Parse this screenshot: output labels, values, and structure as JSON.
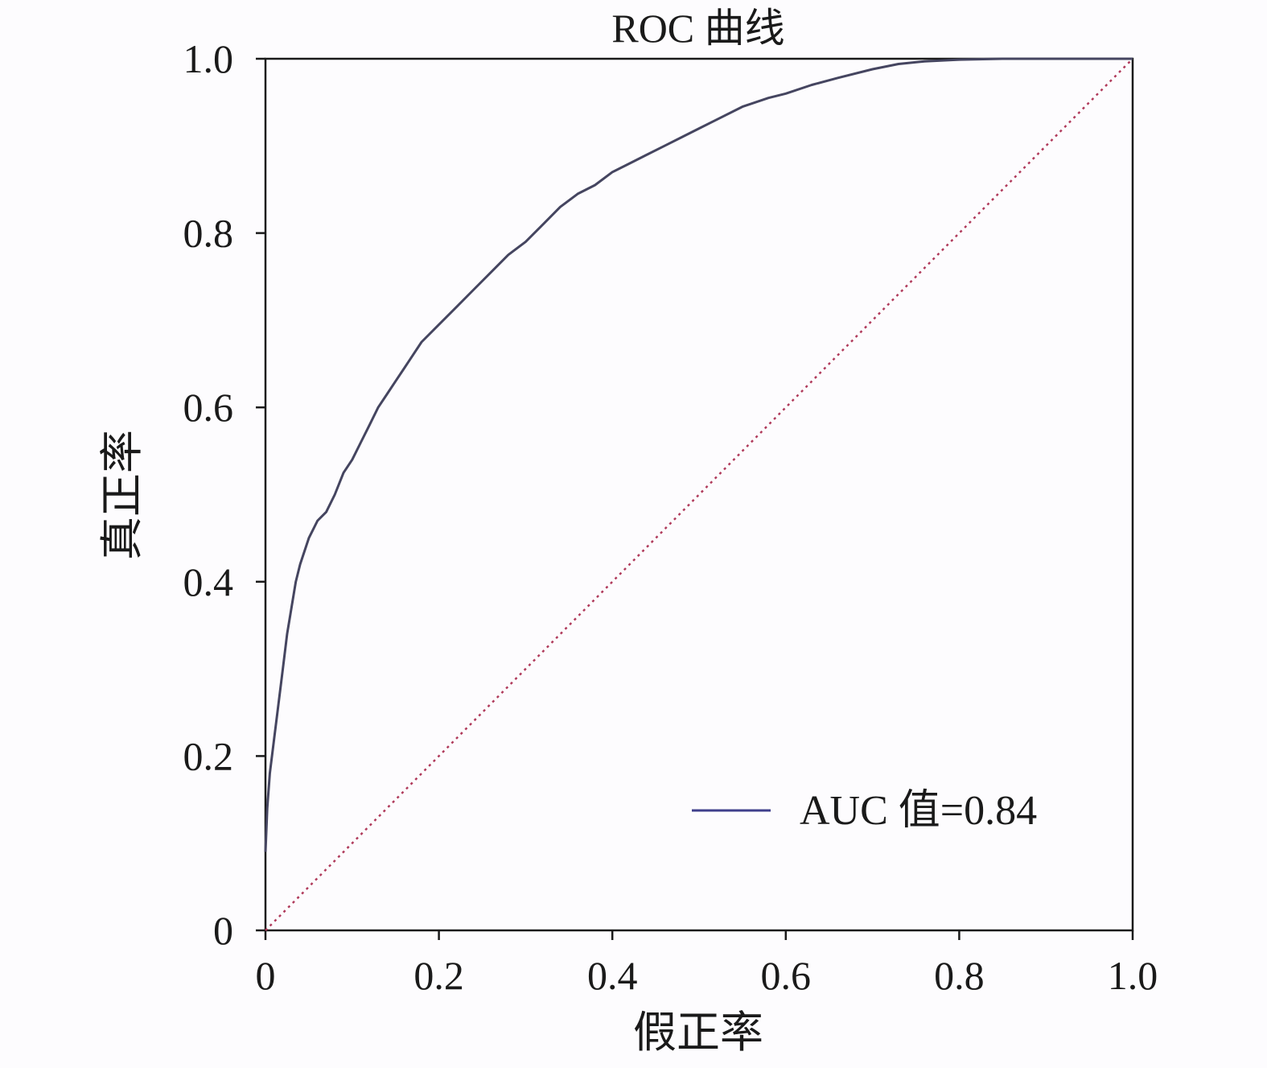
{
  "chart_data": {
    "type": "line",
    "title": "ROC 曲线",
    "xlabel": "假正率",
    "ylabel": "真正率",
    "xlim": [
      0,
      1.0
    ],
    "ylim": [
      0,
      1.0
    ],
    "xticks": [
      0,
      0.2,
      0.4,
      0.6,
      0.8,
      1.0
    ],
    "xtick_labels": [
      "0",
      "0.2",
      "0.4",
      "0.6",
      "0.8",
      "1.0"
    ],
    "yticks": [
      0,
      0.2,
      0.4,
      0.6,
      0.8,
      1.0
    ],
    "ytick_labels": [
      "0",
      "0.2",
      "0.4",
      "0.6",
      "0.8",
      "1.0"
    ],
    "grid": false,
    "legend_position": "bottom-right",
    "colors": {
      "roc_line": "#454560",
      "legend_line": "#3f3f8c",
      "diagonal": "#b03a5b",
      "axis": "#1a1a1a"
    },
    "series": [
      {
        "name": "AUC 值=0.84",
        "x": [
          0,
          0.002,
          0.005,
          0.01,
          0.015,
          0.02,
          0.025,
          0.03,
          0.035,
          0.04,
          0.045,
          0.05,
          0.055,
          0.06,
          0.065,
          0.07,
          0.08,
          0.09,
          0.1,
          0.11,
          0.12,
          0.13,
          0.14,
          0.15,
          0.16,
          0.17,
          0.18,
          0.2,
          0.22,
          0.24,
          0.26,
          0.28,
          0.3,
          0.32,
          0.34,
          0.36,
          0.38,
          0.4,
          0.42,
          0.44,
          0.46,
          0.48,
          0.5,
          0.52,
          0.55,
          0.58,
          0.6,
          0.63,
          0.66,
          0.7,
          0.73,
          0.76,
          0.8,
          0.85,
          0.9,
          0.95,
          1.0
        ],
        "y": [
          0.09,
          0.14,
          0.18,
          0.22,
          0.26,
          0.3,
          0.34,
          0.37,
          0.4,
          0.42,
          0.435,
          0.45,
          0.46,
          0.47,
          0.475,
          0.48,
          0.5,
          0.525,
          0.54,
          0.56,
          0.58,
          0.6,
          0.615,
          0.63,
          0.645,
          0.66,
          0.675,
          0.695,
          0.715,
          0.735,
          0.755,
          0.775,
          0.79,
          0.81,
          0.83,
          0.845,
          0.855,
          0.87,
          0.88,
          0.89,
          0.9,
          0.91,
          0.92,
          0.93,
          0.945,
          0.955,
          0.96,
          0.97,
          0.978,
          0.988,
          0.994,
          0.997,
          0.999,
          1.0,
          1.0,
          1.0,
          1.0
        ]
      },
      {
        "name": "",
        "x": [
          0,
          1.0
        ],
        "y": [
          0,
          1.0
        ],
        "style": "dotted"
      }
    ]
  }
}
